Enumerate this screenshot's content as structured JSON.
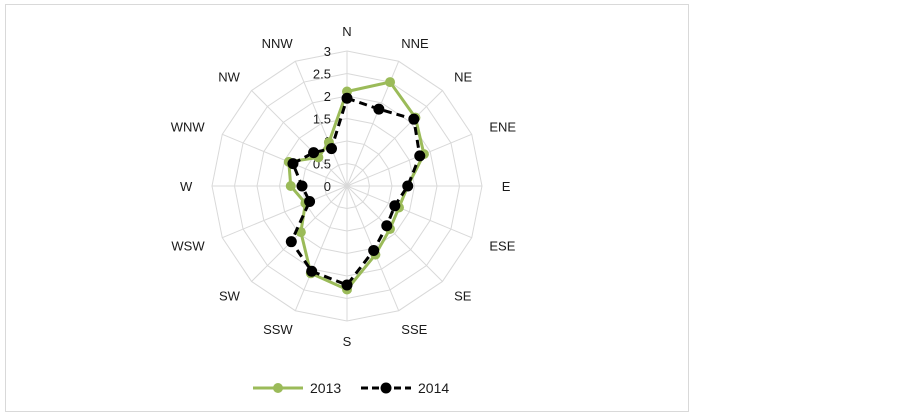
{
  "chart_data": {
    "type": "radar",
    "categories": [
      "N",
      "NNE",
      "NE",
      "ENE",
      "E",
      "ESE",
      "SE",
      "SSE",
      "S",
      "SSW",
      "SW",
      "WSW",
      "W",
      "WNW",
      "NW",
      "NNW"
    ],
    "rlim": [
      0,
      3
    ],
    "ticks": [
      "0",
      "0.5",
      "1",
      "1.5",
      "2",
      "2.5",
      "3"
    ],
    "grid": true,
    "legend": "bottom",
    "series": [
      {
        "name": "2013",
        "color": "#9bbb59",
        "style": "solid",
        "values": [
          2.1,
          2.5,
          2.15,
          1.85,
          1.35,
          1.25,
          1.35,
          1.65,
          2.3,
          2.1,
          1.45,
          1.0,
          1.25,
          1.4,
          0.9,
          1.05
        ]
      },
      {
        "name": "2014",
        "color": "#000000",
        "style": "dashed",
        "values": [
          1.95,
          1.85,
          2.1,
          1.75,
          1.35,
          1.15,
          1.25,
          1.55,
          2.2,
          2.05,
          1.75,
          0.9,
          1.0,
          1.3,
          1.05,
          0.9
        ]
      }
    ]
  }
}
